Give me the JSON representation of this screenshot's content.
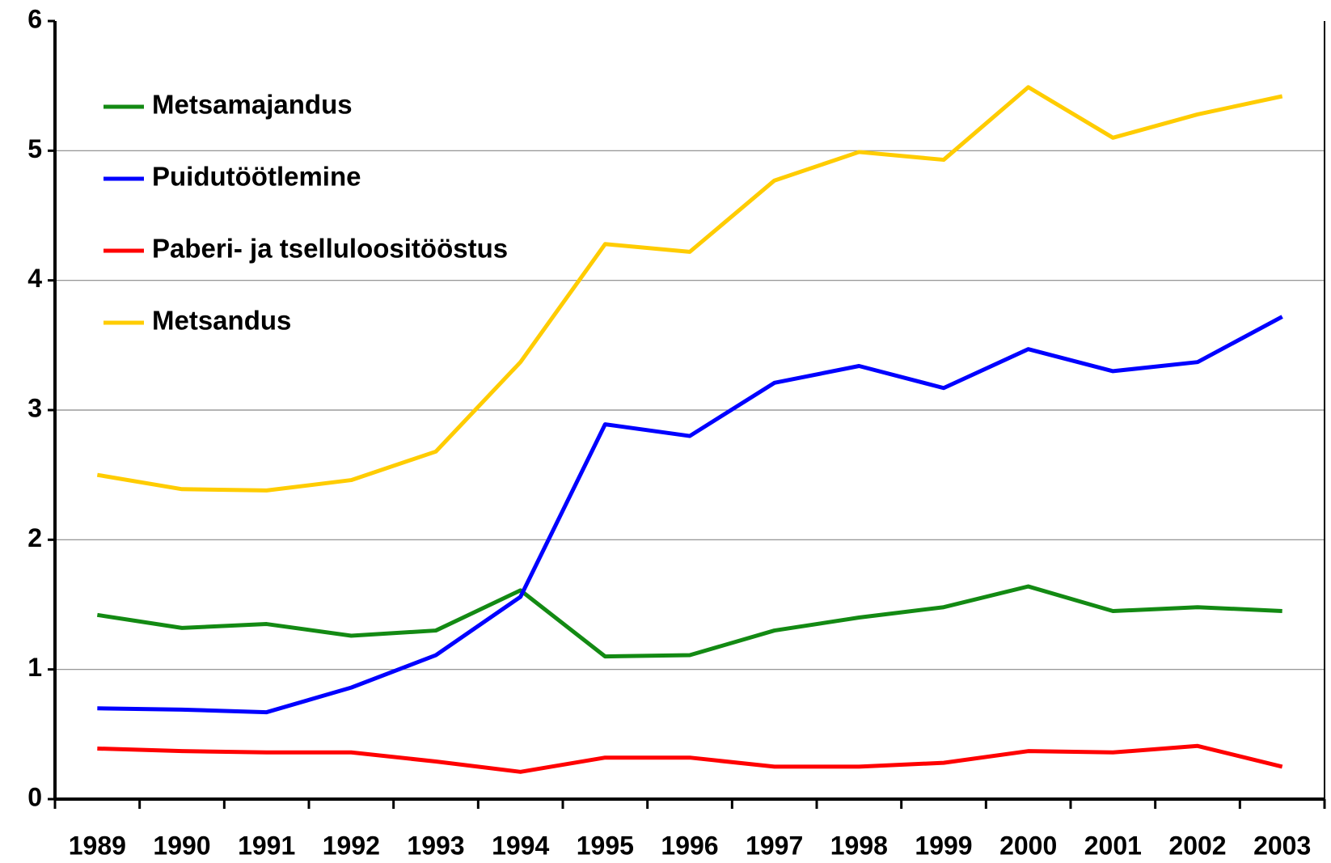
{
  "chart_data": {
    "type": "line",
    "categories": [
      "1989",
      "1990",
      "1991",
      "1992",
      "1993",
      "1994",
      "1995",
      "1996",
      "1997",
      "1998",
      "1999",
      "2000",
      "2001",
      "2002",
      "2003"
    ],
    "series": [
      {
        "name": "Metsamajandus",
        "color": "#138a13",
        "values": [
          1.42,
          1.32,
          1.35,
          1.26,
          1.3,
          1.61,
          1.1,
          1.11,
          1.3,
          1.4,
          1.48,
          1.64,
          1.45,
          1.48,
          1.45
        ]
      },
      {
        "name": "Puidutöötlemine",
        "color": "#0000ff",
        "values": [
          0.7,
          0.69,
          0.67,
          0.86,
          1.11,
          1.56,
          2.89,
          2.8,
          3.21,
          3.34,
          3.17,
          3.47,
          3.3,
          3.37,
          3.72
        ]
      },
      {
        "name": "Paberi- ja tselluloositööstus",
        "color": "#ff0000",
        "values": [
          0.39,
          0.37,
          0.36,
          0.36,
          0.29,
          0.21,
          0.32,
          0.32,
          0.25,
          0.25,
          0.28,
          0.37,
          0.36,
          0.41,
          0.25
        ]
      },
      {
        "name": "Metsandus",
        "color": "#ffcc00",
        "values": [
          2.5,
          2.39,
          2.38,
          2.46,
          2.68,
          3.37,
          4.28,
          4.22,
          4.77,
          4.99,
          4.93,
          5.49,
          5.1,
          5.28,
          5.42
        ]
      }
    ],
    "ylim": [
      0,
      6
    ],
    "yticks": [
      0,
      1,
      2,
      3,
      4,
      5,
      6
    ],
    "grid": true,
    "legend": "upper-left"
  }
}
